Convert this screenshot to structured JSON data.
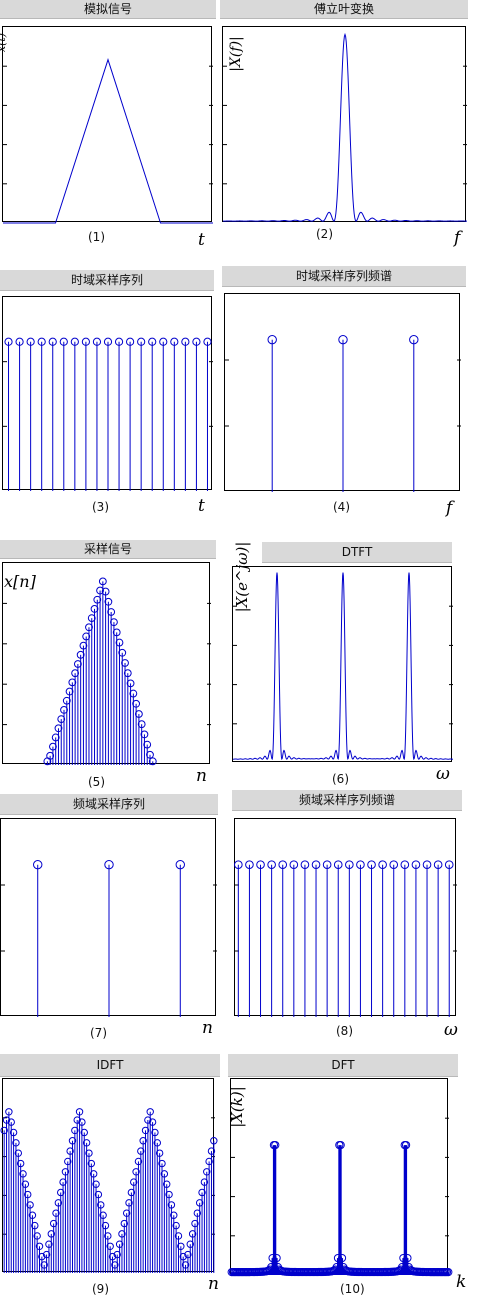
{
  "panels": [
    {
      "title": "模拟信号",
      "caption": "(1)",
      "axis_var": "t",
      "ylabel": "x(t)"
    },
    {
      "title": "傅立叶变换",
      "caption": "(2)",
      "axis_var": "f",
      "ylabel": "|X(f)|"
    },
    {
      "title": "时域采样序列",
      "caption": "(3)",
      "axis_var": "t",
      "ylabel": ""
    },
    {
      "title": "时域采样序列频谱",
      "caption": "(4)",
      "axis_var": "f",
      "ylabel": ""
    },
    {
      "title": "采样信号",
      "caption": "(5)",
      "axis_var": "n",
      "ylabel": "x[n]"
    },
    {
      "title": "DTFT",
      "caption": "(6)",
      "axis_var": "ω",
      "ylabel": "|X(e^jω)|"
    },
    {
      "title": "频域采样序列",
      "caption": "(7)",
      "axis_var": "n",
      "ylabel": ""
    },
    {
      "title": "频域采样序列频谱",
      "caption": "(8)",
      "axis_var": "ω",
      "ylabel": ""
    },
    {
      "title": "IDFT",
      "caption": "(9)",
      "axis_var": "n",
      "ylabel": ""
    },
    {
      "title": "DFT",
      "caption": "(10)",
      "axis_var": "k",
      "ylabel": "|X(k)|"
    }
  ],
  "chart_data": [
    {
      "type": "line",
      "title": "模拟信号",
      "xlabel": "t",
      "ylabel": "x(t)",
      "x": [
        0,
        0.25,
        0.5,
        0.75,
        1
      ],
      "values": [
        0,
        0,
        1,
        0,
        0
      ],
      "xlim": [
        0,
        1
      ],
      "ylim": [
        0,
        1.2
      ],
      "grid": false
    },
    {
      "type": "line",
      "title": "傅立叶变换",
      "xlabel": "f",
      "ylabel": "|X(f)|",
      "shape": "sinc-squared",
      "peak_x": 0.5,
      "peak": 1,
      "xlim": [
        0,
        1
      ],
      "ylim": [
        0,
        1.05
      ],
      "grid": false
    },
    {
      "type": "stem",
      "title": "时域采样序列",
      "xlabel": "t",
      "ylabel": "",
      "count": 19,
      "value": 1,
      "ylim": [
        0,
        1.3
      ],
      "grid": false
    },
    {
      "type": "stem",
      "title": "时域采样序列频谱",
      "xlabel": "f",
      "ylabel": "",
      "x": [
        0.2,
        0.5,
        0.8
      ],
      "values": [
        1,
        1,
        1
      ],
      "xlim": [
        0,
        1
      ],
      "ylim": [
        0,
        1.3
      ],
      "grid": false
    },
    {
      "type": "stem",
      "title": "采样信号",
      "xlabel": "n",
      "ylabel": "x[n]",
      "shape": "triangle",
      "start": 16,
      "peak_index": 36,
      "end": 54,
      "xlim": [
        0,
        75
      ],
      "ylim": [
        0,
        1.1
      ],
      "grid": false
    },
    {
      "type": "line",
      "title": "DTFT",
      "xlabel": "ω",
      "ylabel": "|X(e^jω)|",
      "shape": "periodic-sinc-squared",
      "peak_x": [
        0.2,
        0.5,
        0.8
      ],
      "peak": 1,
      "xlim": [
        0,
        1
      ],
      "ylim": [
        0,
        1.05
      ],
      "grid": false
    },
    {
      "type": "stem",
      "title": "频域采样序列",
      "xlabel": "n",
      "ylabel": "",
      "x": [
        0.17,
        0.5,
        0.83
      ],
      "values": [
        1,
        1,
        1
      ],
      "xlim": [
        0,
        1
      ],
      "ylim": [
        0,
        1.3
      ],
      "grid": false
    },
    {
      "type": "stem",
      "title": "频域采样序列频谱",
      "xlabel": "ω",
      "ylabel": "",
      "count": 20,
      "value": 1,
      "ylim": [
        0,
        1.3
      ],
      "grid": false
    },
    {
      "type": "stem",
      "title": "IDFT",
      "xlabel": "n",
      "ylabel": "",
      "shape": "periodic-triangle",
      "periods": 3,
      "count": 90,
      "ylim": [
        0,
        1.1
      ],
      "grid": false
    },
    {
      "type": "stem",
      "title": "DFT",
      "xlabel": "k",
      "ylabel": "|X(k)|",
      "shape": "three-peaks",
      "peak_x": [
        0.2,
        0.5,
        0.8
      ],
      "count": 160,
      "xlim": [
        0,
        1
      ],
      "ylim": [
        0,
        1.05
      ],
      "grid": false
    }
  ],
  "colors": {
    "line": "#0000cc",
    "marker": "#0000cc",
    "titlebar": "#d9d9d9"
  }
}
